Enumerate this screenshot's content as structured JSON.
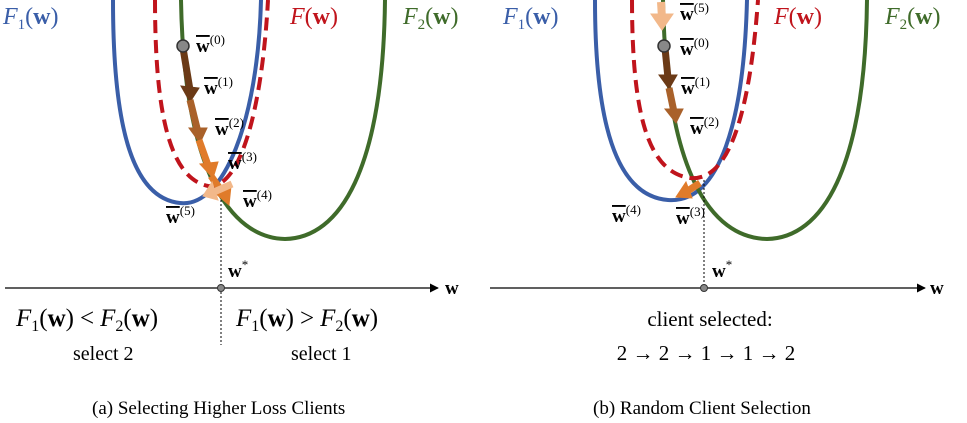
{
  "colors": {
    "f1": "#3a5ea8",
    "f2": "#3f6b2a",
    "f_global": "#c0141c",
    "axis": "#000000",
    "arrow_dark": "#6b3a16",
    "arrow_mid": "#a9612a",
    "arrow_orange": "#e07b2a",
    "arrow_light": "#f2b88a",
    "point": "#888888"
  },
  "common": {
    "w_axis": "w",
    "w_star_base": "w",
    "w_star_sup": "*",
    "w_bar": "w",
    "func_open": "(",
    "func_close": ")",
    "F": "F",
    "sub1": "1",
    "sub2": "2"
  },
  "panel_a": {
    "iterates": [
      {
        "sup": "(0)"
      },
      {
        "sup": "(1)"
      },
      {
        "sup": "(2)"
      },
      {
        "sup": "(3)"
      },
      {
        "sup": "(4)"
      },
      {
        "sup": "(5)"
      }
    ],
    "left_cond": {
      "lt": "<",
      "select": "select 2"
    },
    "right_cond": {
      "gt": ">",
      "select": "select 1"
    },
    "caption": "(a) Selecting Higher Loss Clients"
  },
  "panel_b": {
    "iterates": [
      {
        "sup": "(0)"
      },
      {
        "sup": "(1)"
      },
      {
        "sup": "(2)"
      },
      {
        "sup": "(3)"
      },
      {
        "sup": "(4)"
      },
      {
        "sup": "(5)"
      }
    ],
    "client_selected_label": "client selected:",
    "sequence": "2 → 2 → 1 → 1 → 2",
    "caption": "(b) Random Client Selection"
  }
}
